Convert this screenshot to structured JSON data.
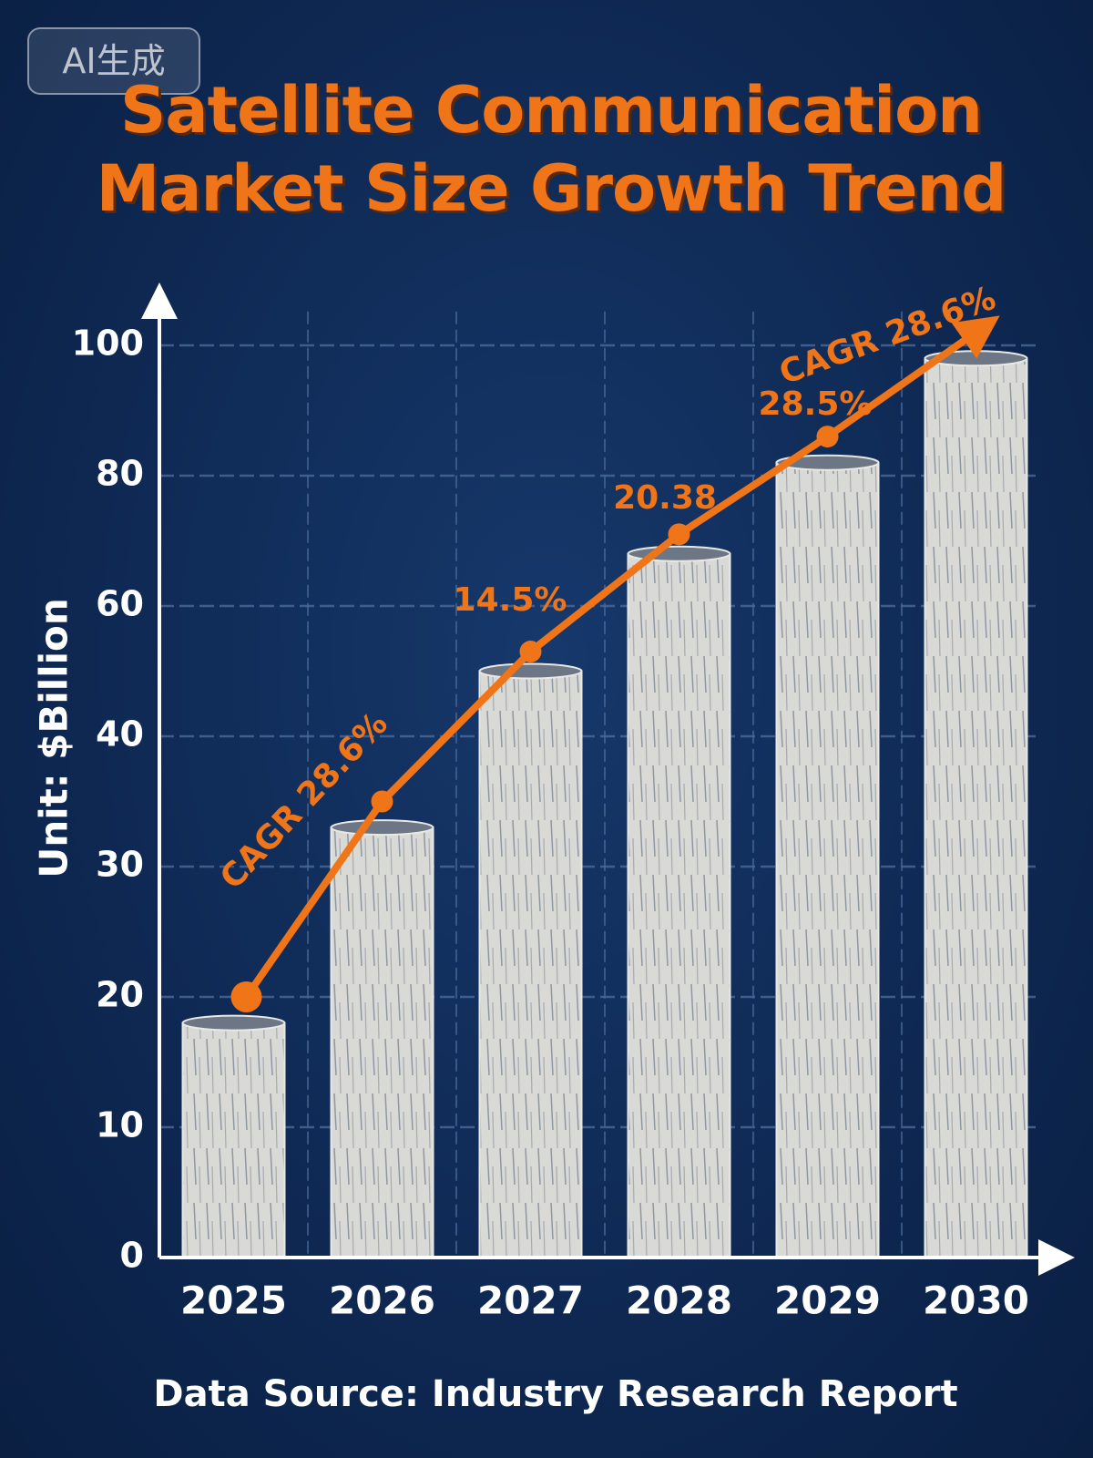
{
  "watermark": "AI生成",
  "chart_data": {
    "type": "bar",
    "title": "Satellite Communication Market Size Growth Trend",
    "y_label": "Unit: $Billion",
    "source": "Data Source: Industry Research Report",
    "categories": [
      "2025",
      "2026",
      "2027",
      "2028",
      "2029",
      "2030"
    ],
    "values": [
      18,
      33,
      50,
      68,
      82,
      98
    ],
    "color": "#d9d9d6",
    "overlay": {
      "type": "line",
      "values": [
        20,
        35,
        53,
        71,
        86,
        102
      ],
      "color": "#f07418"
    },
    "annotations": [
      "CAGR 28.6%",
      "14.5%",
      "20.38",
      "28.5%",
      "CAGR 28.6%"
    ],
    "ylim": [
      0,
      108
    ],
    "yticks": [
      0,
      10,
      20,
      30,
      40,
      60,
      80,
      100
    ],
    "grid": true
  }
}
